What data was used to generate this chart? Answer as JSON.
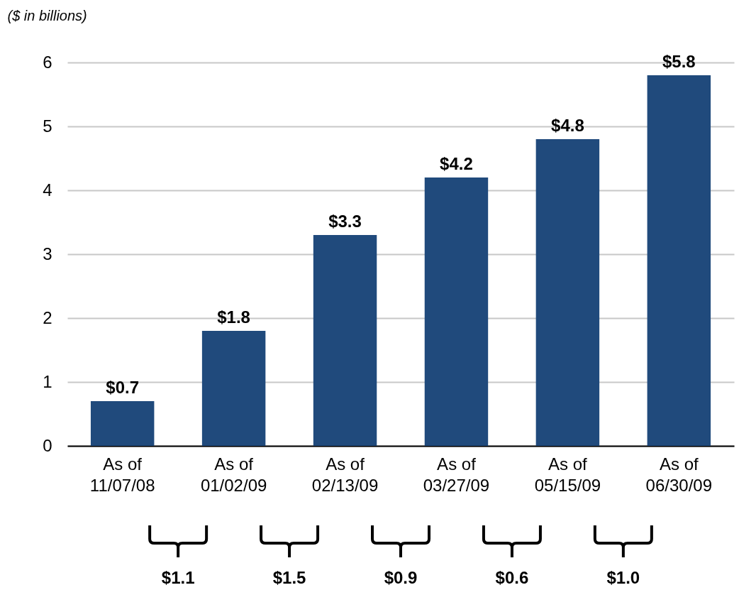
{
  "chart_data": {
    "type": "bar",
    "ylabel": "($ in billions)",
    "categories": [
      "As of 11/07/08",
      "As of 01/02/09",
      "As of 02/13/09",
      "As of 03/27/09",
      "As of 05/15/09",
      "As of 06/30/09"
    ],
    "values": [
      0.7,
      1.8,
      3.3,
      4.2,
      4.8,
      5.8
    ],
    "value_labels": [
      "$0.7",
      "$1.8",
      "$3.3",
      "$4.2",
      "$4.8",
      "$5.8"
    ],
    "color": "#204a7c",
    "ylim": [
      0,
      6
    ],
    "yticks": [
      0,
      1,
      2,
      3,
      4,
      5,
      6
    ],
    "grid": "y",
    "annotations": [
      "$1.1",
      "$1.5",
      "$0.9",
      "$0.6",
      "$1.0"
    ]
  }
}
